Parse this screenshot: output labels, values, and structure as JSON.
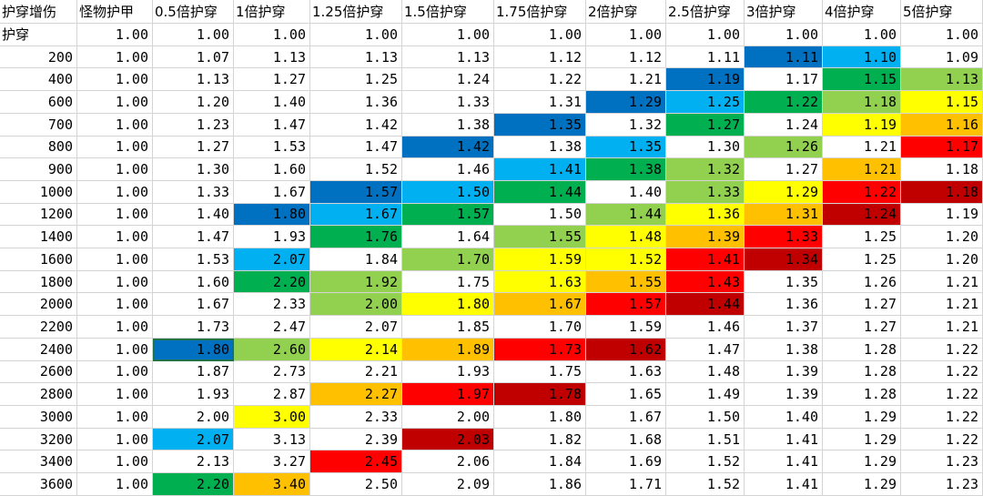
{
  "headers": [
    "护穿增伤",
    "怪物护甲",
    "0.5倍护穿",
    "1倍护穿",
    "1.25倍护穿",
    "1.5倍护穿",
    "1.75倍护穿",
    "2倍护穿",
    "2.5倍护穿",
    "3倍护穿",
    "4倍护穿",
    "5倍护穿"
  ],
  "palette": {
    "B": "#0070C0",
    "L": "#00B0F0",
    "G": "#00B050",
    "T": "#92D050",
    "Y": "#FFFF00",
    "O": "#FFC000",
    "R": "#FF0000",
    "D": "#C00000",
    "W": "#FFFFFF"
  },
  "rows": [
    {
      "label": "护穿",
      "values": [
        "1.00",
        "1.00",
        "1.00",
        "1.00",
        "1.00",
        "1.00",
        "1.00",
        "1.00",
        "1.00",
        "1.00",
        "1.00"
      ],
      "colors": "WWWWWWWWWWW"
    },
    {
      "label": "200",
      "values": [
        "1.00",
        "1.07",
        "1.13",
        "1.13",
        "1.13",
        "1.12",
        "1.12",
        "1.11",
        "1.11",
        "1.10",
        "1.09"
      ],
      "colors": "WWWWWWWWBLW"
    },
    {
      "label": "400",
      "values": [
        "1.00",
        "1.13",
        "1.27",
        "1.25",
        "1.24",
        "1.22",
        "1.21",
        "1.19",
        "1.17",
        "1.15",
        "1.13"
      ],
      "colors": "WWWWWWWBWGT"
    },
    {
      "label": "600",
      "values": [
        "1.00",
        "1.20",
        "1.40",
        "1.36",
        "1.33",
        "1.31",
        "1.29",
        "1.25",
        "1.22",
        "1.18",
        "1.15"
      ],
      "colors": "WWWWWWBLGTY"
    },
    {
      "label": "700",
      "values": [
        "1.00",
        "1.23",
        "1.47",
        "1.42",
        "1.38",
        "1.35",
        "1.32",
        "1.27",
        "1.24",
        "1.19",
        "1.16"
      ],
      "colors": "WWWWWBWGWYO"
    },
    {
      "label": "800",
      "values": [
        "1.00",
        "1.27",
        "1.53",
        "1.47",
        "1.42",
        "1.38",
        "1.35",
        "1.30",
        "1.26",
        "1.21",
        "1.17"
      ],
      "colors": "WWWWBWLWTWR"
    },
    {
      "label": "900",
      "values": [
        "1.00",
        "1.30",
        "1.60",
        "1.52",
        "1.46",
        "1.41",
        "1.38",
        "1.32",
        "1.27",
        "1.21",
        "1.18"
      ],
      "colors": "WWWWWLGTWOW"
    },
    {
      "label": "1000",
      "values": [
        "1.00",
        "1.33",
        "1.67",
        "1.57",
        "1.50",
        "1.44",
        "1.40",
        "1.33",
        "1.29",
        "1.22",
        "1.18"
      ],
      "colors": "WWWBLGWTYRD"
    },
    {
      "label": "1200",
      "values": [
        "1.00",
        "1.40",
        "1.80",
        "1.67",
        "1.57",
        "1.50",
        "1.44",
        "1.36",
        "1.31",
        "1.24",
        "1.19"
      ],
      "colors": "WWBLGWTYOD W"
    },
    {
      "label": "1400",
      "values": [
        "1.00",
        "1.47",
        "1.93",
        "1.76",
        "1.64",
        "1.55",
        "1.48",
        "1.39",
        "1.33",
        "1.25",
        "1.20"
      ],
      "colors": "WWWGWTYORWW"
    },
    {
      "label": "1600",
      "values": [
        "1.00",
        "1.53",
        "2.07",
        "1.84",
        "1.70",
        "1.59",
        "1.52",
        "1.41",
        "1.34",
        "1.25",
        "1.20"
      ],
      "colors": "WWLWTYYRDWW"
    },
    {
      "label": "1800",
      "values": [
        "1.00",
        "1.60",
        "2.20",
        "1.92",
        "1.75",
        "1.63",
        "1.55",
        "1.43",
        "1.35",
        "1.26",
        "1.21"
      ],
      "colors": "WWGTWYORWWW"
    },
    {
      "label": "2000",
      "values": [
        "1.00",
        "1.67",
        "2.33",
        "2.00",
        "1.80",
        "1.67",
        "1.57",
        "1.44",
        "1.36",
        "1.27",
        "1.21"
      ],
      "colors": "WWWTYORDWWW"
    },
    {
      "label": "2200",
      "values": [
        "1.00",
        "1.73",
        "2.47",
        "2.07",
        "1.85",
        "1.70",
        "1.59",
        "1.46",
        "1.37",
        "1.27",
        "1.21"
      ],
      "colors": "WWWWWWWWWWW"
    },
    {
      "label": "2400",
      "values": [
        "1.00",
        "1.80",
        "2.60",
        "2.14",
        "1.89",
        "1.73",
        "1.62",
        "1.47",
        "1.38",
        "1.28",
        "1.22"
      ],
      "colors": "WBTYORDWWWW"
    },
    {
      "label": "2600",
      "values": [
        "1.00",
        "1.87",
        "2.73",
        "2.21",
        "1.93",
        "1.75",
        "1.63",
        "1.48",
        "1.39",
        "1.28",
        "1.22"
      ],
      "colors": "WWWWWWWWWWW"
    },
    {
      "label": "2800",
      "values": [
        "1.00",
        "1.93",
        "2.87",
        "2.27",
        "1.97",
        "1.78",
        "1.65",
        "1.49",
        "1.39",
        "1.28",
        "1.22"
      ],
      "colors": "WWWORDWWWWW"
    },
    {
      "label": "3000",
      "values": [
        "1.00",
        "2.00",
        "3.00",
        "2.33",
        "2.00",
        "1.80",
        "1.67",
        "1.50",
        "1.40",
        "1.29",
        "1.22"
      ],
      "colors": "WWYWWWWWWWW"
    },
    {
      "label": "3200",
      "values": [
        "1.00",
        "2.07",
        "3.13",
        "2.39",
        "2.03",
        "1.82",
        "1.68",
        "1.51",
        "1.41",
        "1.29",
        "1.22"
      ],
      "colors": "WLWWDWWWWWW"
    },
    {
      "label": "3400",
      "values": [
        "1.00",
        "2.13",
        "3.27",
        "2.45",
        "2.06",
        "1.84",
        "1.69",
        "1.52",
        "1.41",
        "1.29",
        "1.23"
      ],
      "colors": "WWWRWWWWWWW"
    },
    {
      "label": "3600",
      "values": [
        "1.00",
        "2.20",
        "3.40",
        "2.50",
        "2.09",
        "1.86",
        "1.71",
        "1.52",
        "1.41",
        "1.29",
        "1.23"
      ],
      "colors": "WGOWWWWWWWW"
    }
  ]
}
